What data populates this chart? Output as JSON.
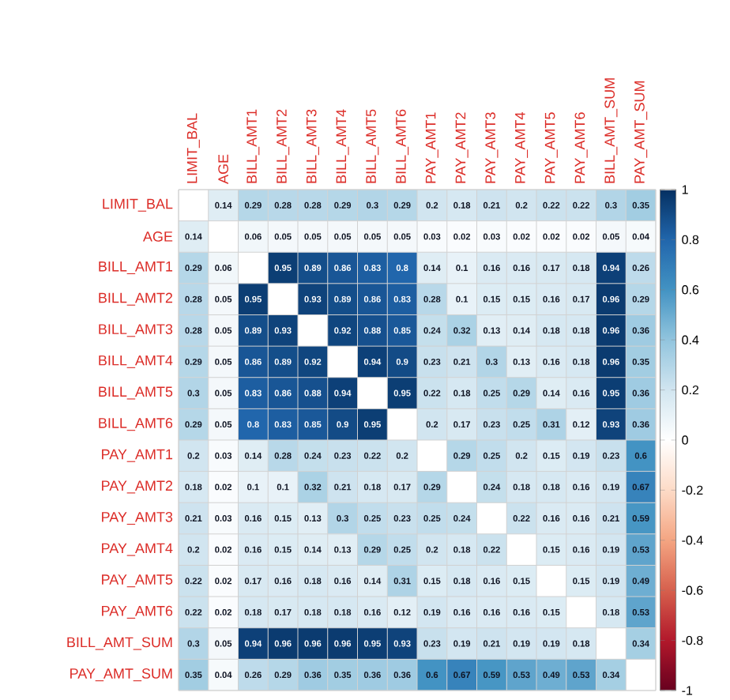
{
  "chart_data": {
    "type": "heatmap",
    "categories": [
      "LIMIT_BAL",
      "AGE",
      "BILL_AMT1",
      "BILL_AMT2",
      "BILL_AMT3",
      "BILL_AMT4",
      "BILL_AMT5",
      "BILL_AMT6",
      "PAY_AMT1",
      "PAY_AMT2",
      "PAY_AMT3",
      "PAY_AMT4",
      "PAY_AMT5",
      "PAY_AMT6",
      "BILL_AMT_SUM",
      "PAY_AMT_SUM"
    ],
    "y_categories": [
      "LIMIT_BAL",
      "AGE",
      "BILL_AMT1",
      "BILL_AMT2",
      "BILL_AMT3",
      "BILL_AMT4",
      "BILL_AMT5",
      "BILL_AMT6",
      "PAY_AMT1",
      "PAY_AMT2",
      "PAY_AMT3",
      "PAY_AMT4",
      "PAY_AMT5",
      "PAY_AMT6",
      "BILL_AMT_SUM",
      "PAY_AMT_SUM"
    ],
    "cells": [
      [
        null,
        0.14,
        0.29,
        0.28,
        0.28,
        0.29,
        0.3,
        0.29,
        0.2,
        0.18,
        0.21,
        0.2,
        0.22,
        0.22,
        0.3,
        0.35
      ],
      [
        0.14,
        null,
        0.06,
        0.05,
        0.05,
        0.05,
        0.05,
        0.05,
        0.03,
        0.02,
        0.03,
        0.02,
        0.02,
        0.02,
        0.05,
        0.04
      ],
      [
        0.29,
        0.06,
        null,
        0.95,
        0.89,
        0.86,
        0.83,
        0.8,
        0.14,
        0.1,
        0.16,
        0.16,
        0.17,
        0.18,
        0.94,
        0.26
      ],
      [
        0.28,
        0.05,
        0.95,
        null,
        0.93,
        0.89,
        0.86,
        0.83,
        0.28,
        0.1,
        0.15,
        0.15,
        0.16,
        0.17,
        0.96,
        0.29
      ],
      [
        0.28,
        0.05,
        0.89,
        0.93,
        null,
        0.92,
        0.88,
        0.85,
        0.24,
        0.32,
        0.13,
        0.14,
        0.18,
        0.18,
        0.96,
        0.36
      ],
      [
        0.29,
        0.05,
        0.86,
        0.89,
        0.92,
        null,
        0.94,
        0.9,
        0.23,
        0.21,
        0.3,
        0.13,
        0.16,
        0.18,
        0.96,
        0.35
      ],
      [
        0.3,
        0.05,
        0.83,
        0.86,
        0.88,
        0.94,
        null,
        0.95,
        0.22,
        0.18,
        0.25,
        0.29,
        0.14,
        0.16,
        0.95,
        0.36
      ],
      [
        0.29,
        0.05,
        0.8,
        0.83,
        0.85,
        0.9,
        0.95,
        null,
        0.2,
        0.17,
        0.23,
        0.25,
        0.31,
        0.12,
        0.93,
        0.36
      ],
      [
        0.2,
        0.03,
        0.14,
        0.28,
        0.24,
        0.23,
        0.22,
        0.2,
        null,
        0.29,
        0.25,
        0.2,
        0.15,
        0.19,
        0.23,
        0.6
      ],
      [
        0.18,
        0.02,
        0.1,
        0.1,
        0.32,
        0.21,
        0.18,
        0.17,
        0.29,
        null,
        0.24,
        0.18,
        0.18,
        0.16,
        0.19,
        0.67
      ],
      [
        0.21,
        0.03,
        0.16,
        0.15,
        0.13,
        0.3,
        0.25,
        0.23,
        0.25,
        0.24,
        null,
        0.22,
        0.16,
        0.16,
        0.21,
        0.59
      ],
      [
        0.2,
        0.02,
        0.16,
        0.15,
        0.14,
        0.13,
        0.29,
        0.25,
        0.2,
        0.18,
        0.22,
        null,
        0.15,
        0.16,
        0.19,
        0.53
      ],
      [
        0.22,
        0.02,
        0.17,
        0.16,
        0.18,
        0.16,
        0.14,
        0.31,
        0.15,
        0.18,
        0.16,
        0.15,
        null,
        0.15,
        0.19,
        0.49
      ],
      [
        0.22,
        0.02,
        0.18,
        0.17,
        0.18,
        0.18,
        0.16,
        0.12,
        0.19,
        0.16,
        0.16,
        0.16,
        0.15,
        null,
        0.18,
        0.53
      ],
      [
        0.3,
        0.05,
        0.94,
        0.96,
        0.96,
        0.96,
        0.95,
        0.93,
        0.23,
        0.19,
        0.21,
        0.19,
        0.19,
        0.18,
        null,
        0.34
      ],
      [
        0.35,
        0.04,
        0.26,
        0.29,
        0.36,
        0.35,
        0.36,
        0.36,
        0.6,
        0.67,
        0.59,
        0.53,
        0.49,
        0.53,
        0.34,
        null
      ]
    ],
    "clim": [
      -1,
      1
    ],
    "cticks": [
      -1,
      -0.8,
      -0.6,
      -0.4,
      -0.2,
      0,
      0.2,
      0.4,
      0.6,
      0.8,
      1
    ],
    "data_labels": true
  }
}
